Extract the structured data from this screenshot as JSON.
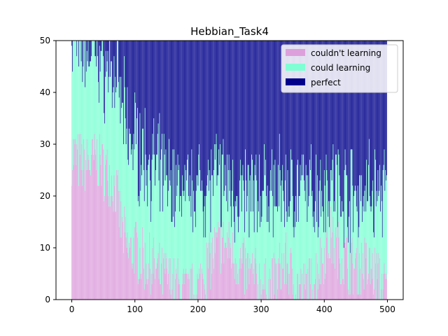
{
  "chart_data": {
    "type": "bar",
    "stacked": true,
    "title": "Hebbian_Task4",
    "xlabel": "",
    "ylabel": "",
    "xlim": [
      -25,
      525
    ],
    "ylim": [
      0,
      50
    ],
    "x_ticks": [
      0,
      100,
      200,
      300,
      400,
      500
    ],
    "y_ticks": [
      0,
      10,
      20,
      30,
      40,
      50
    ],
    "legend_position": "top-right",
    "grid": false,
    "n_bars": 500,
    "series": [
      {
        "name": "couldn't learning",
        "color": "#dda0dd",
        "anchors": [
          [
            0,
            28
          ],
          [
            20,
            26
          ],
          [
            40,
            27
          ],
          [
            60,
            24
          ],
          [
            70,
            21
          ],
          [
            80,
            13
          ],
          [
            90,
            9
          ],
          [
            100,
            10
          ],
          [
            110,
            8
          ],
          [
            120,
            7
          ],
          [
            130,
            6
          ],
          [
            140,
            5
          ],
          [
            150,
            4
          ],
          [
            160,
            3
          ],
          [
            170,
            2
          ],
          [
            180,
            1
          ],
          [
            190,
            1
          ],
          [
            200,
            2
          ],
          [
            210,
            5
          ],
          [
            220,
            8
          ],
          [
            230,
            10
          ],
          [
            240,
            11
          ],
          [
            250,
            10
          ],
          [
            260,
            8
          ],
          [
            270,
            6
          ],
          [
            280,
            5
          ],
          [
            290,
            4
          ],
          [
            300,
            3
          ],
          [
            310,
            2
          ],
          [
            320,
            3
          ],
          [
            330,
            6
          ],
          [
            340,
            7
          ],
          [
            350,
            4
          ],
          [
            360,
            2
          ],
          [
            370,
            2
          ],
          [
            380,
            3
          ],
          [
            390,
            6
          ],
          [
            400,
            9
          ],
          [
            410,
            12
          ],
          [
            420,
            10
          ],
          [
            430,
            8
          ],
          [
            440,
            7
          ],
          [
            450,
            6
          ],
          [
            460,
            7
          ],
          [
            470,
            6
          ],
          [
            480,
            5
          ],
          [
            490,
            3
          ],
          [
            500,
            2
          ]
        ],
        "noise": 3
      },
      {
        "name": "could learning",
        "color": "#7fffd4",
        "anchors": [
          [
            0,
            22
          ],
          [
            20,
            23
          ],
          [
            40,
            21
          ],
          [
            60,
            20
          ],
          [
            70,
            21
          ],
          [
            80,
            24
          ],
          [
            90,
            22
          ],
          [
            100,
            21
          ],
          [
            110,
            20
          ],
          [
            120,
            20
          ],
          [
            130,
            19
          ],
          [
            140,
            19
          ],
          [
            150,
            19
          ],
          [
            160,
            19
          ],
          [
            170,
            19
          ],
          [
            180,
            19
          ],
          [
            190,
            19
          ],
          [
            200,
            19
          ],
          [
            210,
            17
          ],
          [
            220,
            15
          ],
          [
            230,
            13
          ],
          [
            240,
            12
          ],
          [
            250,
            12
          ],
          [
            260,
            13
          ],
          [
            270,
            14
          ],
          [
            280,
            15
          ],
          [
            290,
            16
          ],
          [
            300,
            17
          ],
          [
            310,
            18
          ],
          [
            320,
            17
          ],
          [
            330,
            15
          ],
          [
            340,
            14
          ],
          [
            350,
            17
          ],
          [
            360,
            18
          ],
          [
            370,
            18
          ],
          [
            380,
            17
          ],
          [
            390,
            15
          ],
          [
            400,
            13
          ],
          [
            410,
            11
          ],
          [
            420,
            12
          ],
          [
            430,
            13
          ],
          [
            440,
            14
          ],
          [
            450,
            14
          ],
          [
            460,
            14
          ],
          [
            470,
            15
          ],
          [
            480,
            16
          ],
          [
            490,
            17
          ],
          [
            500,
            18
          ]
        ],
        "noise": 3
      },
      {
        "name": "perfect",
        "color": "#00008b",
        "fill": "remainder"
      }
    ]
  }
}
